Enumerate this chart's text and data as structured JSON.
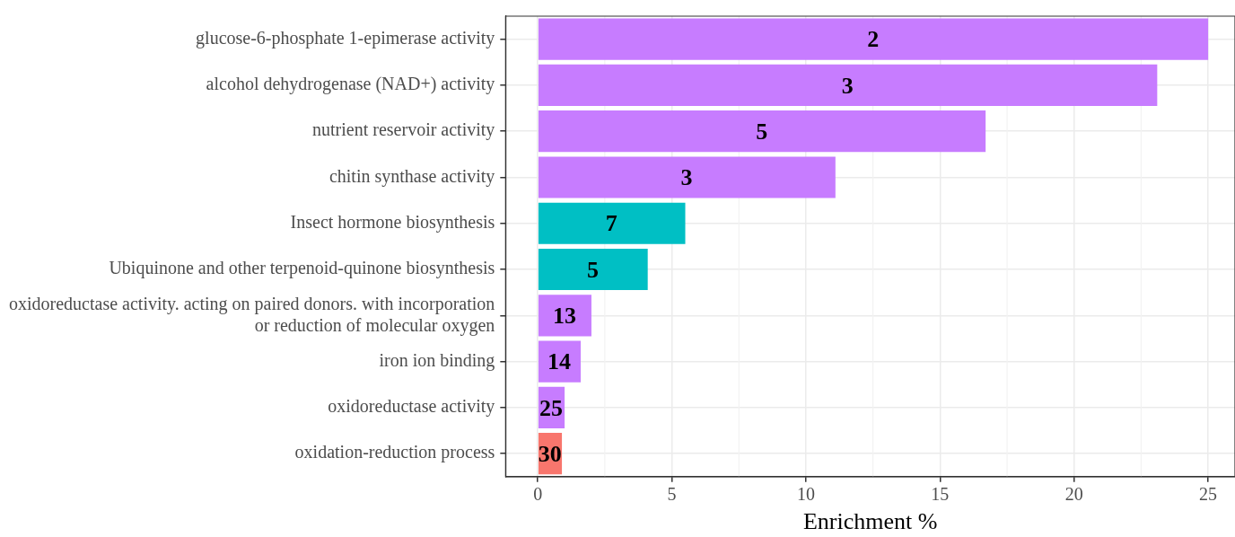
{
  "chart_data": {
    "type": "bar",
    "orientation": "horizontal",
    "xlabel": "Enrichment %",
    "categories": [
      "glucose-6-phosphate 1-epimerase activity",
      "alcohol dehydrogenase (NAD+) activity",
      "nutrient reservoir activity",
      "chitin synthase activity",
      "Insect hormone biosynthesis",
      "Ubiquinone and other terpenoid-quinone biosynthesis",
      "oxidoreductase activity. acting on paired donors. with incorporation or reduction of molecular oxygen",
      "iron ion binding",
      "oxidoreductase activity",
      "oxidation-reduction process"
    ],
    "values": [
      25,
      23.1,
      16.7,
      11.1,
      5.5,
      4.1,
      2.0,
      1.6,
      1.0,
      0.9
    ],
    "colors": [
      "#c77cff",
      "#c77cff",
      "#c77cff",
      "#c77cff",
      "#00bfc4",
      "#00bfc4",
      "#c77cff",
      "#c77cff",
      "#c77cff",
      "#f8766d"
    ],
    "annotations": [
      {
        "text": "2",
        "x": 12.5,
        "y": "glucose-6-phosphate 1-epimerase activity"
      },
      {
        "text": "3",
        "x": 11.55,
        "y": "alcohol dehydrogenase (NAD+) activity"
      },
      {
        "text": "5",
        "x": 8.35,
        "y": "nutrient reservoir activity"
      },
      {
        "text": "3",
        "x": 5.55,
        "y": "chitin synthase activity"
      },
      {
        "text": "7",
        "x": 2.75,
        "y": "Insect hormone biosynthesis"
      },
      {
        "text": "5",
        "x": 2.05,
        "y": "Ubiquinone and other terpenoid-quinone biosynthesis"
      },
      {
        "text": "13",
        "x": 1.0,
        "y": "oxidoreductase activity. acting on paired donors. with incorporation or reduction of molecular oxygen"
      },
      {
        "text": "14",
        "x": 0.8,
        "y": "iron ion binding"
      },
      {
        "text": "25",
        "x": 0.5,
        "y": "oxidoreductase activity"
      },
      {
        "text": "30",
        "x": 0.45,
        "y": "oxidation-reduction process"
      }
    ],
    "xlim": [
      -1.2,
      26
    ],
    "xticks": [
      0,
      5,
      10,
      15,
      20,
      25
    ],
    "grid": true,
    "legend": false
  }
}
